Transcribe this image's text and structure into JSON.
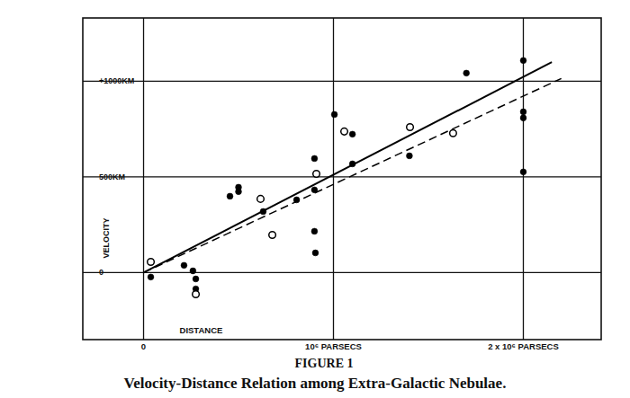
{
  "chart_data": {
    "type": "scatter",
    "title": "Velocity-Distance Relation among Extra-Galactic Nebulae.",
    "subtitle": "FIGURE 1",
    "x_label": "DISTANCE",
    "y_label": "VELOCITY",
    "xlim": [
      -320000,
      2410000
    ],
    "ylim": [
      -350,
      1330
    ],
    "xticks": [
      0,
      {
        "value": 1000000,
        "label": "10⁶ PARSECS"
      },
      {
        "value": 2000000,
        "label": "2 x 10⁶ PARSECS"
      }
    ],
    "yticks": [
      0,
      {
        "value": 500,
        "label": "500KM"
      },
      {
        "value": 1000,
        "label": "+1000KM"
      }
    ],
    "grid": true,
    "series": [
      {
        "type": "scatter",
        "marker": "filled-circle",
        "color": "#000000",
        "x": [
          38000,
          213000,
          260000,
          275000,
          275000,
          455000,
          500000,
          500000,
          630000,
          806000,
          900000,
          900000,
          900000,
          905000,
          1005000,
          1100000,
          1100000,
          1400000,
          1700000,
          2000000,
          2000000,
          2000000,
          2000000
        ],
        "values": [
          -23,
          38,
          9,
          -33,
          -85,
          399,
          423,
          446,
          319,
          380,
          596,
          432,
          216,
          103,
          826,
          723,
          568,
          610,
          1042,
          1108,
          840,
          808,
          526
        ]
      },
      {
        "type": "scatter",
        "marker": "open-circle",
        "color": "#000000",
        "x": [
          38000,
          275000,
          616000,
          678000,
          910000,
          1057000,
          1403000,
          1630000
        ],
        "values": [
          56,
          -113,
          385,
          197,
          516,
          737,
          760,
          728
        ]
      },
      {
        "type": "line",
        "line_style": "solid",
        "color": "#000000",
        "x": [
          0,
          2150000
        ],
        "values": [
          0,
          1099
        ]
      },
      {
        "type": "line",
        "line_style": "dashed",
        "color": "#000000",
        "x": [
          0,
          2200000
        ],
        "values": [
          0,
          1014
        ]
      }
    ]
  }
}
